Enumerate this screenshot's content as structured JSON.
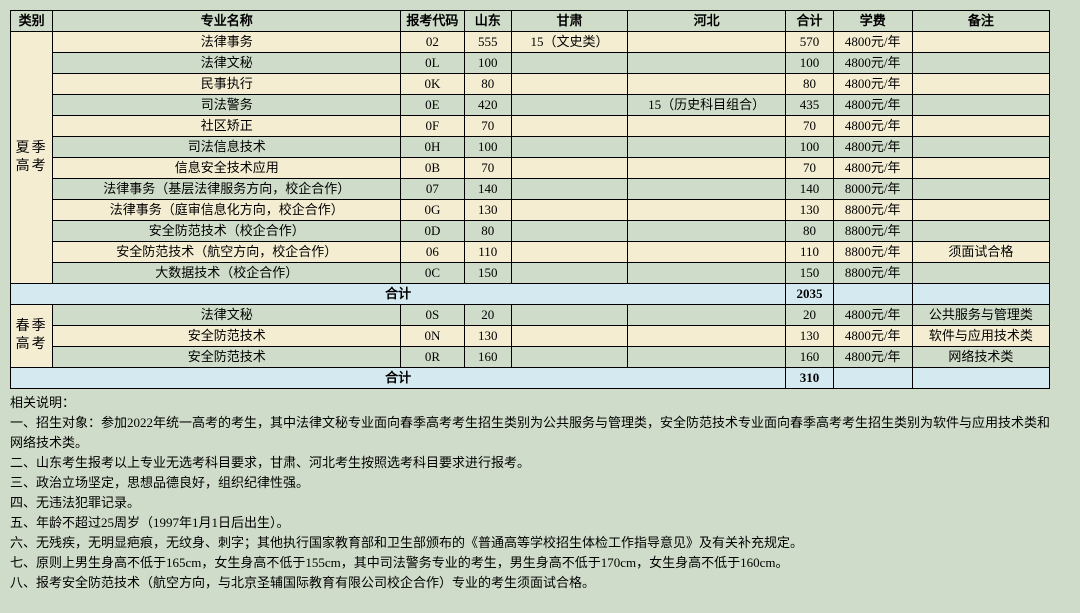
{
  "colors": {
    "page_bg": "#cfdcc9",
    "header_bg": "#cfdcc9",
    "row_a_bg": "#f4edd2",
    "row_b_bg": "#cfdcc9",
    "subtotal_bg": "#d5e9f1",
    "border": "#000000",
    "text": "#000000"
  },
  "typography": {
    "base_fontsize_pt": 10,
    "header_weight": "bold",
    "font_family": "SimSun / 宋体"
  },
  "headers": {
    "category": "类别",
    "major": "专业名称",
    "code": "报考代码",
    "shandong": "山东",
    "gansu": "甘肃",
    "hebei": "河北",
    "total": "合计",
    "fee": "学费",
    "note": "备注"
  },
  "sections": [
    {
      "category": "夏季\n高考",
      "rows": [
        {
          "major": "法律事务",
          "code": "02",
          "sd": "555",
          "gs": "15（文史类）",
          "hb": "",
          "sum": "570",
          "fee": "4800元/年",
          "note": "",
          "cls": "row-a"
        },
        {
          "major": "法律文秘",
          "code": "0L",
          "sd": "100",
          "gs": "",
          "hb": "",
          "sum": "100",
          "fee": "4800元/年",
          "note": "",
          "cls": "row-b"
        },
        {
          "major": "民事执行",
          "code": "0K",
          "sd": "80",
          "gs": "",
          "hb": "",
          "sum": "80",
          "fee": "4800元/年",
          "note": "",
          "cls": "row-a"
        },
        {
          "major": "司法警务",
          "code": "0E",
          "sd": "420",
          "gs": "",
          "hb": "15（历史科目组合）",
          "sum": "435",
          "fee": "4800元/年",
          "note": "",
          "cls": "row-b"
        },
        {
          "major": "社区矫正",
          "code": "0F",
          "sd": "70",
          "gs": "",
          "hb": "",
          "sum": "70",
          "fee": "4800元/年",
          "note": "",
          "cls": "row-a"
        },
        {
          "major": "司法信息技术",
          "code": "0H",
          "sd": "100",
          "gs": "",
          "hb": "",
          "sum": "100",
          "fee": "4800元/年",
          "note": "",
          "cls": "row-b"
        },
        {
          "major": "信息安全技术应用",
          "code": "0B",
          "sd": "70",
          "gs": "",
          "hb": "",
          "sum": "70",
          "fee": "4800元/年",
          "note": "",
          "cls": "row-a"
        },
        {
          "major": "法律事务（基层法律服务方向，校企合作）",
          "code": "07",
          "sd": "140",
          "gs": "",
          "hb": "",
          "sum": "140",
          "fee": "8000元/年",
          "note": "",
          "cls": "row-b"
        },
        {
          "major": "法律事务（庭审信息化方向，校企合作）",
          "code": "0G",
          "sd": "130",
          "gs": "",
          "hb": "",
          "sum": "130",
          "fee": "8800元/年",
          "note": "",
          "cls": "row-a"
        },
        {
          "major": "安全防范技术（校企合作）",
          "code": "0D",
          "sd": "80",
          "gs": "",
          "hb": "",
          "sum": "80",
          "fee": "8800元/年",
          "note": "",
          "cls": "row-b"
        },
        {
          "major": "安全防范技术（航空方向，校企合作）",
          "code": "06",
          "sd": "110",
          "gs": "",
          "hb": "",
          "sum": "110",
          "fee": "8800元/年",
          "note": "须面试合格",
          "cls": "row-a"
        },
        {
          "major": "大数据技术（校企合作）",
          "code": "0C",
          "sd": "150",
          "gs": "",
          "hb": "",
          "sum": "150",
          "fee": "8800元/年",
          "note": "",
          "cls": "row-b"
        }
      ],
      "subtotal": {
        "label": "合计",
        "sum": "2035"
      }
    },
    {
      "category": "春季\n高考",
      "rows": [
        {
          "major": "法律文秘",
          "code": "0S",
          "sd": "20",
          "gs": "",
          "hb": "",
          "sum": "20",
          "fee": "4800元/年",
          "note": "公共服务与管理类",
          "cls": "row-b"
        },
        {
          "major": "安全防范技术",
          "code": "0N",
          "sd": "130",
          "gs": "",
          "hb": "",
          "sum": "130",
          "fee": "4800元/年",
          "note": "软件与应用技术类",
          "cls": "row-a"
        },
        {
          "major": "安全防范技术",
          "code": "0R",
          "sd": "160",
          "gs": "",
          "hb": "",
          "sum": "160",
          "fee": "4800元/年",
          "note": "网络技术类",
          "cls": "row-b"
        }
      ],
      "subtotal": {
        "label": "合计",
        "sum": "310"
      }
    }
  ],
  "notes_title": "相关说明：",
  "notes": [
    "一、招生对象：参加2022年统一高考的考生，其中法律文秘专业面向春季高考考生招生类别为公共服务与管理类，安全防范技术专业面向春季高考考生招生类别为软件与应用技术类和网络技术类。",
    "二、山东考生报考以上专业无选考科目要求，甘肃、河北考生按照选考科目要求进行报考。",
    "三、政治立场坚定，思想品德良好，组织纪律性强。",
    "四、无违法犯罪记录。",
    "五、年龄不超过25周岁（1997年1月1日后出生）。",
    "六、无残疾，无明显疤痕，无纹身、刺字；其他执行国家教育部和卫生部颁布的《普通高等学校招生体检工作指导意见》及有关补充规定。",
    "七、原则上男生身高不低于165cm，女生身高不低于155cm，其中司法警务专业的考生，男生身高不低于170cm，女生身高不低于160cm。",
    "八、报考安全防范技术（航空方向，与北京圣辅国际教育有限公司校企合作）专业的考生须面试合格。"
  ]
}
